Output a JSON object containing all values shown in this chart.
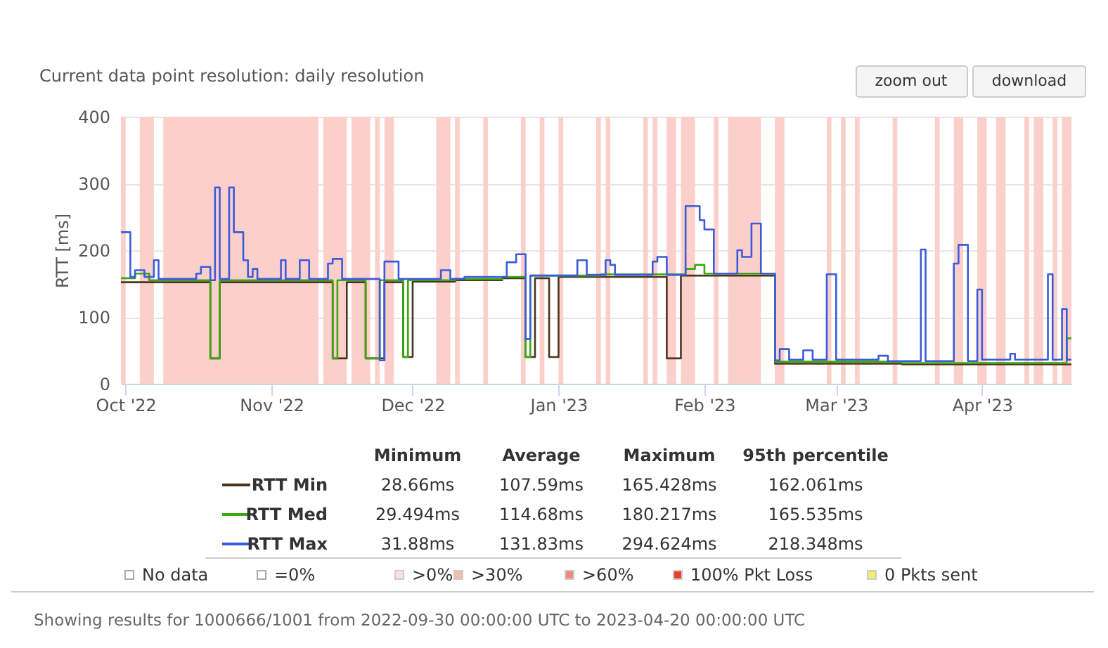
{
  "chart_data": {
    "type": "step",
    "title": "Current data point resolution: daily resolution",
    "ylabel": "RTT [ms]",
    "xlim": [
      "2022-09-30",
      "2023-04-20"
    ],
    "xticks": [
      {
        "value": "2022-10-01",
        "label": "Oct '22"
      },
      {
        "value": "2022-11-01",
        "label": "Nov '22"
      },
      {
        "value": "2022-12-01",
        "label": "Dec '22"
      },
      {
        "value": "2023-01-01",
        "label": "Jan '23"
      },
      {
        "value": "2023-02-01",
        "label": "Feb '23"
      },
      {
        "value": "2023-03-01",
        "label": "Mar '23"
      },
      {
        "value": "2023-04-01",
        "label": "Apr '23"
      }
    ],
    "ylim": [
      0,
      400
    ],
    "yticks": [
      0,
      100,
      200,
      300,
      400
    ],
    "grid": "y",
    "legend": "bottom",
    "marker": "none",
    "line_style": "solid",
    "series": [
      {
        "name": "RTT Min",
        "color": "#4a3520",
        "x": [
          "2022-09-30",
          "2022-10-19",
          "2022-10-21",
          "2022-11-14",
          "2022-11-17",
          "2022-11-21",
          "2022-11-25",
          "2022-11-29",
          "2022-12-01",
          "2022-12-10",
          "2022-12-20",
          "2022-12-25",
          "2022-12-27",
          "2022-12-30",
          "2023-01-01",
          "2023-01-24",
          "2023-01-27",
          "2023-02-16",
          "2023-03-15",
          "2023-04-20"
        ],
        "values": [
          152,
          38,
          152,
          38,
          152,
          38,
          152,
          40,
          153,
          155,
          158,
          40,
          158,
          40,
          160,
          38,
          162,
          30,
          29,
          29
        ]
      },
      {
        "name": "RTT Med",
        "color": "#3aa80e",
        "x": [
          "2022-09-30",
          "2022-10-03",
          "2022-10-06",
          "2022-10-19",
          "2022-10-21",
          "2022-11-14",
          "2022-11-15",
          "2022-11-21",
          "2022-11-24",
          "2022-11-29",
          "2022-11-30",
          "2022-12-10",
          "2022-12-20",
          "2022-12-25",
          "2022-12-26",
          "2023-01-10",
          "2023-01-28",
          "2023-01-30",
          "2023-02-01",
          "2023-02-16",
          "2023-03-15",
          "2023-04-19",
          "2023-04-20"
        ],
        "values": [
          158,
          165,
          155,
          38,
          155,
          38,
          155,
          38,
          155,
          40,
          155,
          157,
          160,
          40,
          162,
          164,
          172,
          178,
          165,
          33,
          31,
          68,
          68
        ]
      },
      {
        "name": "RTT Max",
        "color": "#3b5bdb",
        "x": [
          "2022-09-30",
          "2022-10-02",
          "2022-10-03",
          "2022-10-05",
          "2022-10-07",
          "2022-10-08",
          "2022-10-16",
          "2022-10-17",
          "2022-10-19",
          "2022-10-20",
          "2022-10-21",
          "2022-10-23",
          "2022-10-24",
          "2022-10-26",
          "2022-10-27",
          "2022-10-28",
          "2022-10-29",
          "2022-11-03",
          "2022-11-04",
          "2022-11-07",
          "2022-11-09",
          "2022-11-13",
          "2022-11-14",
          "2022-11-16",
          "2022-11-24",
          "2022-11-25",
          "2022-11-28",
          "2022-12-07",
          "2022-12-09",
          "2022-12-12",
          "2022-12-21",
          "2022-12-23",
          "2022-12-25",
          "2022-12-26",
          "2023-01-05",
          "2023-01-07",
          "2023-01-11",
          "2023-01-12",
          "2023-01-13",
          "2023-01-21",
          "2023-01-22",
          "2023-01-24",
          "2023-01-28",
          "2023-01-31",
          "2023-02-01",
          "2023-02-03",
          "2023-02-08",
          "2023-02-09",
          "2023-02-11",
          "2023-02-13",
          "2023-02-16",
          "2023-02-17",
          "2023-02-19",
          "2023-02-22",
          "2023-02-24",
          "2023-02-27",
          "2023-03-01",
          "2023-03-10",
          "2023-03-12",
          "2023-03-19",
          "2023-03-20",
          "2023-03-26",
          "2023-03-27",
          "2023-03-29",
          "2023-03-31",
          "2023-04-01",
          "2023-04-07",
          "2023-04-08",
          "2023-04-15",
          "2023-04-16",
          "2023-04-18",
          "2023-04-19",
          "2023-04-20"
        ],
        "values": [
          227,
          160,
          170,
          160,
          185,
          157,
          165,
          175,
          155,
          294,
          157,
          294,
          227,
          185,
          160,
          172,
          157,
          185,
          157,
          185,
          157,
          180,
          187,
          157,
          35,
          183,
          157,
          170,
          157,
          160,
          182,
          194,
          67,
          162,
          185,
          163,
          185,
          178,
          163,
          183,
          190,
          163,
          266,
          245,
          231,
          165,
          200,
          190,
          240,
          165,
          35,
          52,
          36,
          50,
          36,
          164,
          36,
          42,
          34,
          201,
          34,
          180,
          208,
          34,
          141,
          36,
          45,
          36,
          164,
          36,
          112,
          36,
          36
        ]
      }
    ],
    "bands": [
      {
        "axis": "x",
        "from": "2022-09-30",
        "to": "2022-10-01",
        "color": "#fbd0cb"
      },
      {
        "axis": "x",
        "from": "2022-10-04",
        "to": "2022-10-07",
        "color": "#fbd0cb"
      },
      {
        "axis": "x",
        "from": "2022-10-09",
        "to": "2022-11-11",
        "color": "#fbd0cb"
      },
      {
        "axis": "x",
        "from": "2022-11-12",
        "to": "2022-11-17",
        "color": "#fbd0cb"
      },
      {
        "axis": "x",
        "from": "2022-11-18",
        "to": "2022-11-22",
        "color": "#fbd0cb"
      },
      {
        "axis": "x",
        "from": "2022-11-23",
        "to": "2022-11-24",
        "color": "#fbd0cb"
      },
      {
        "axis": "x",
        "from": "2022-11-25",
        "to": "2022-11-27",
        "color": "#fbd0cb"
      },
      {
        "axis": "x",
        "from": "2022-12-06",
        "to": "2022-12-09",
        "color": "#fbd0cb"
      },
      {
        "axis": "x",
        "from": "2022-12-10",
        "to": "2022-12-11",
        "color": "#fbd0cb"
      },
      {
        "axis": "x",
        "from": "2022-12-16",
        "to": "2022-12-17",
        "color": "#fbd0cb"
      },
      {
        "axis": "x",
        "from": "2022-12-24",
        "to": "2022-12-25",
        "color": "#fbd0cb"
      },
      {
        "axis": "x",
        "from": "2022-12-28",
        "to": "2022-12-29",
        "color": "#fbd0cb"
      },
      {
        "axis": "x",
        "from": "2023-01-01",
        "to": "2023-01-02",
        "color": "#fbd0cb"
      },
      {
        "axis": "x",
        "from": "2023-01-09",
        "to": "2023-01-10",
        "color": "#fbd0cb"
      },
      {
        "axis": "x",
        "from": "2023-01-11",
        "to": "2023-01-12",
        "color": "#fbd0cb"
      },
      {
        "axis": "x",
        "from": "2023-01-19",
        "to": "2023-01-20",
        "color": "#fbd0cb"
      },
      {
        "axis": "x",
        "from": "2023-01-21",
        "to": "2023-01-22",
        "color": "#fbd0cb"
      },
      {
        "axis": "x",
        "from": "2023-01-24",
        "to": "2023-01-26",
        "color": "#fbd0cb"
      },
      {
        "axis": "x",
        "from": "2023-01-27",
        "to": "2023-01-30",
        "color": "#fbd0cb"
      },
      {
        "axis": "x",
        "from": "2023-02-03",
        "to": "2023-02-04",
        "color": "#fbd0cb"
      },
      {
        "axis": "x",
        "from": "2023-02-06",
        "to": "2023-02-13",
        "color": "#fbd0cb"
      },
      {
        "axis": "x",
        "from": "2023-02-16",
        "to": "2023-02-18",
        "color": "#fbd0cb"
      },
      {
        "axis": "x",
        "from": "2023-02-27",
        "to": "2023-02-28",
        "color": "#fbd0cb"
      },
      {
        "axis": "x",
        "from": "2023-03-02",
        "to": "2023-03-03",
        "color": "#fbd0cb"
      },
      {
        "axis": "x",
        "from": "2023-03-05",
        "to": "2023-03-06",
        "color": "#fbd0cb"
      },
      {
        "axis": "x",
        "from": "2023-03-13",
        "to": "2023-03-14",
        "color": "#fbd0cb"
      },
      {
        "axis": "x",
        "from": "2023-03-22",
        "to": "2023-03-23",
        "color": "#fbd0cb"
      },
      {
        "axis": "x",
        "from": "2023-03-26",
        "to": "2023-03-28",
        "color": "#fbd0cb"
      },
      {
        "axis": "x",
        "from": "2023-03-31",
        "to": "2023-04-02",
        "color": "#fbd0cb"
      },
      {
        "axis": "x",
        "from": "2023-04-04",
        "to": "2023-04-06",
        "color": "#fbd0cb"
      },
      {
        "axis": "x",
        "from": "2023-04-10",
        "to": "2023-04-11",
        "color": "#fbd0cb"
      },
      {
        "axis": "x",
        "from": "2023-04-12",
        "to": "2023-04-14",
        "color": "#fbd0cb"
      },
      {
        "axis": "x",
        "from": "2023-04-16",
        "to": "2023-04-17",
        "color": "#fbd0cb"
      },
      {
        "axis": "x",
        "from": "2023-04-18",
        "to": "2023-04-20",
        "color": "#fbd0cb"
      }
    ],
    "annotations": [
      "zoom out",
      "download",
      "Minimum",
      "Average",
      "Maximum",
      "95th percentile",
      "28.66ms",
      "107.59ms",
      "165.428ms",
      "162.061ms",
      "29.494ms",
      "114.68ms",
      "180.217ms",
      "165.535ms",
      "31.88ms",
      "131.83ms",
      "294.624ms",
      "218.348ms",
      "No data",
      "=0%",
      ">0%",
      ">30%",
      ">60%",
      "100% Pkt Loss",
      "0 Pkts sent",
      "Showing results for 1000666/1001 from 2022-09-30 00:00:00 UTC to 2023-04-20 00:00:00 UTC"
    ]
  }
}
